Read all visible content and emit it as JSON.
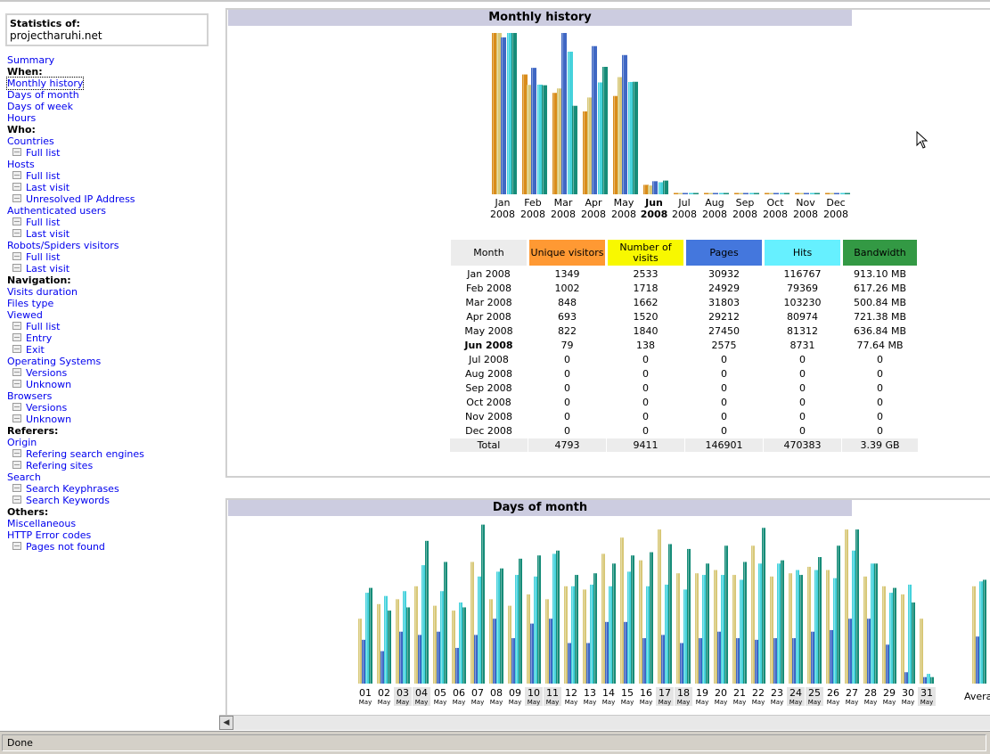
{
  "sidebar": {
    "stats_title": "Statistics of:",
    "site": "projectharuhi.net",
    "menu": [
      {
        "label": "Summary",
        "type": "link"
      },
      {
        "label": "When:",
        "type": "header"
      },
      {
        "label": "Monthly history",
        "type": "link",
        "current": true
      },
      {
        "label": "Days of month",
        "type": "link"
      },
      {
        "label": "Days of week",
        "type": "link"
      },
      {
        "label": "Hours",
        "type": "link"
      },
      {
        "label": "Who:",
        "type": "header"
      },
      {
        "label": "Countries",
        "type": "link"
      },
      {
        "label": "Full list",
        "type": "sub"
      },
      {
        "label": "Hosts",
        "type": "link"
      },
      {
        "label": "Full list",
        "type": "sub"
      },
      {
        "label": "Last visit",
        "type": "sub"
      },
      {
        "label": "Unresolved IP Address",
        "type": "sub"
      },
      {
        "label": "Authenticated users",
        "type": "link"
      },
      {
        "label": "Full list",
        "type": "sub"
      },
      {
        "label": "Last visit",
        "type": "sub"
      },
      {
        "label": "Robots/Spiders visitors",
        "type": "link"
      },
      {
        "label": "Full list",
        "type": "sub"
      },
      {
        "label": "Last visit",
        "type": "sub"
      },
      {
        "label": "Navigation:",
        "type": "header"
      },
      {
        "label": "Visits duration",
        "type": "link"
      },
      {
        "label": "Files type",
        "type": "link"
      },
      {
        "label": "Viewed",
        "type": "link"
      },
      {
        "label": "Full list",
        "type": "sub"
      },
      {
        "label": "Entry",
        "type": "sub"
      },
      {
        "label": "Exit",
        "type": "sub"
      },
      {
        "label": "Operating Systems",
        "type": "link"
      },
      {
        "label": "Versions",
        "type": "sub"
      },
      {
        "label": "Unknown",
        "type": "sub"
      },
      {
        "label": "Browsers",
        "type": "link"
      },
      {
        "label": "Versions",
        "type": "sub"
      },
      {
        "label": "Unknown",
        "type": "sub"
      },
      {
        "label": "Referers:",
        "type": "header"
      },
      {
        "label": "Origin",
        "type": "link"
      },
      {
        "label": "Refering search engines",
        "type": "sub"
      },
      {
        "label": "Refering sites",
        "type": "sub"
      },
      {
        "label": "Search",
        "type": "link"
      },
      {
        "label": "Search Keyphrases",
        "type": "sub"
      },
      {
        "label": "Search Keywords",
        "type": "sub"
      },
      {
        "label": "Others:",
        "type": "header"
      },
      {
        "label": "Miscellaneous",
        "type": "link"
      },
      {
        "label": "HTTP Error codes",
        "type": "link"
      },
      {
        "label": "Pages not found",
        "type": "sub"
      }
    ]
  },
  "monthly": {
    "title": "Monthly history",
    "headers": [
      "Month",
      "Unique visitors",
      "Number of visits",
      "Pages",
      "Hits",
      "Bandwidth"
    ],
    "header_colors": [
      "#ececec",
      "#ff9933",
      "#f8f800",
      "#4477dd",
      "#66f0ff",
      "#339944"
    ],
    "rows": [
      {
        "month": "Jan 2008",
        "uv": "1349",
        "visits": "2533",
        "pages": "30932",
        "hits": "116767",
        "bw": "913.10 MB"
      },
      {
        "month": "Feb 2008",
        "uv": "1002",
        "visits": "1718",
        "pages": "24929",
        "hits": "79369",
        "bw": "617.26 MB"
      },
      {
        "month": "Mar 2008",
        "uv": "848",
        "visits": "1662",
        "pages": "31803",
        "hits": "103230",
        "bw": "500.84 MB"
      },
      {
        "month": "Apr 2008",
        "uv": "693",
        "visits": "1520",
        "pages": "29212",
        "hits": "80974",
        "bw": "721.38 MB"
      },
      {
        "month": "May 2008",
        "uv": "822",
        "visits": "1840",
        "pages": "27450",
        "hits": "81312",
        "bw": "636.84 MB"
      },
      {
        "month": "Jun 2008",
        "uv": "79",
        "visits": "138",
        "pages": "2575",
        "hits": "8731",
        "bw": "77.64 MB",
        "current": true
      },
      {
        "month": "Jul 2008",
        "uv": "0",
        "visits": "0",
        "pages": "0",
        "hits": "0",
        "bw": "0"
      },
      {
        "month": "Aug 2008",
        "uv": "0",
        "visits": "0",
        "pages": "0",
        "hits": "0",
        "bw": "0"
      },
      {
        "month": "Sep 2008",
        "uv": "0",
        "visits": "0",
        "pages": "0",
        "hits": "0",
        "bw": "0"
      },
      {
        "month": "Oct 2008",
        "uv": "0",
        "visits": "0",
        "pages": "0",
        "hits": "0",
        "bw": "0"
      },
      {
        "month": "Nov 2008",
        "uv": "0",
        "visits": "0",
        "pages": "0",
        "hits": "0",
        "bw": "0"
      },
      {
        "month": "Dec 2008",
        "uv": "0",
        "visits": "0",
        "pages": "0",
        "hits": "0",
        "bw": "0"
      }
    ],
    "total": {
      "label": "Total",
      "uv": "4793",
      "visits": "9411",
      "pages": "146901",
      "hits": "470383",
      "bw": "3.39 GB"
    }
  },
  "chart_data": [
    {
      "type": "bar",
      "title": "Monthly history",
      "categories": [
        "Jan 2008",
        "Feb 2008",
        "Mar 2008",
        "Apr 2008",
        "May 2008",
        "Jun 2008",
        "Jul 2008",
        "Aug 2008",
        "Sep 2008",
        "Oct 2008",
        "Nov 2008",
        "Dec 2008"
      ],
      "category_labels": [
        [
          "Jan",
          "2008"
        ],
        [
          "Feb",
          "2008"
        ],
        [
          "Mar",
          "2008"
        ],
        [
          "Apr",
          "2008"
        ],
        [
          "May",
          "2008"
        ],
        [
          "Jun",
          "2008"
        ],
        [
          "Jul",
          "2008"
        ],
        [
          "Aug",
          "2008"
        ],
        [
          "Sep",
          "2008"
        ],
        [
          "Oct",
          "2008"
        ],
        [
          "Nov",
          "2008"
        ],
        [
          "Dec",
          "2008"
        ]
      ],
      "current_category": "Jun 2008",
      "series": [
        {
          "name": "Unique visitors",
          "color": "#d98c1a",
          "values": [
            1349,
            1002,
            848,
            693,
            822,
            79,
            0,
            0,
            0,
            0,
            0,
            0
          ]
        },
        {
          "name": "Number of visits",
          "color": "#d8c878",
          "values": [
            2533,
            1718,
            1662,
            1520,
            1840,
            138,
            0,
            0,
            0,
            0,
            0,
            0
          ]
        },
        {
          "name": "Pages",
          "color": "#3f67c4",
          "values": [
            30932,
            24929,
            31803,
            29212,
            27450,
            2575,
            0,
            0,
            0,
            0,
            0,
            0
          ]
        },
        {
          "name": "Hits",
          "color": "#46d2dc",
          "values": [
            116767,
            79369,
            103230,
            80974,
            81312,
            8731,
            0,
            0,
            0,
            0,
            0,
            0
          ]
        },
        {
          "name": "Bandwidth",
          "color": "#168c78",
          "values": [
            913.1,
            617.26,
            500.84,
            721.38,
            636.84,
            77.64,
            0,
            0,
            0,
            0,
            0,
            0
          ]
        }
      ]
    },
    {
      "type": "bar",
      "title": "Days of month",
      "categories": [
        "01",
        "02",
        "03",
        "04",
        "05",
        "06",
        "07",
        "08",
        "09",
        "10",
        "11",
        "12",
        "13",
        "14",
        "15",
        "16",
        "17",
        "18",
        "19",
        "20",
        "21",
        "22",
        "23",
        "24",
        "25",
        "26",
        "27",
        "28",
        "29",
        "30",
        "31",
        "Average"
      ],
      "month_label": "May",
      "weekend_days": [
        "03",
        "04",
        "10",
        "11",
        "17",
        "18",
        "24",
        "25",
        "31"
      ],
      "series": [
        {
          "name": "Number of visits",
          "color": "#d8c878",
          "values": [
            40,
            49,
            52,
            60,
            48,
            45,
            75,
            52,
            48,
            55,
            52,
            60,
            58,
            80,
            90,
            76,
            95,
            68,
            68,
            70,
            67,
            85,
            66,
            68,
            72,
            70,
            95,
            66,
            60,
            55,
            40,
            60
          ]
        },
        {
          "name": "Pages",
          "color": "#3f67c4",
          "values": [
            27,
            20,
            32,
            30,
            32,
            22,
            30,
            40,
            28,
            37,
            40,
            25,
            25,
            38,
            38,
            28,
            30,
            25,
            28,
            32,
            28,
            27,
            28,
            28,
            32,
            33,
            40,
            40,
            24,
            7,
            4,
            29
          ]
        },
        {
          "name": "Hits",
          "color": "#46d2dc",
          "values": [
            56,
            54,
            57,
            73,
            57,
            50,
            66,
            69,
            67,
            66,
            80,
            60,
            61,
            60,
            69,
            60,
            61,
            58,
            67,
            67,
            64,
            74,
            74,
            70,
            70,
            65,
            82,
            74,
            56,
            61,
            6,
            63
          ]
        },
        {
          "name": "Bandwidth",
          "color": "#168c78",
          "values": [
            59,
            45,
            47,
            88,
            75,
            47,
            98,
            71,
            77,
            79,
            82,
            67,
            68,
            74,
            79,
            81,
            86,
            83,
            74,
            85,
            75,
            96,
            76,
            67,
            78,
            85,
            95,
            74,
            59,
            50,
            4,
            64
          ]
        }
      ]
    }
  ],
  "days": {
    "title": "Days of month",
    "average_label": "Average"
  },
  "status": {
    "text": "Done"
  }
}
